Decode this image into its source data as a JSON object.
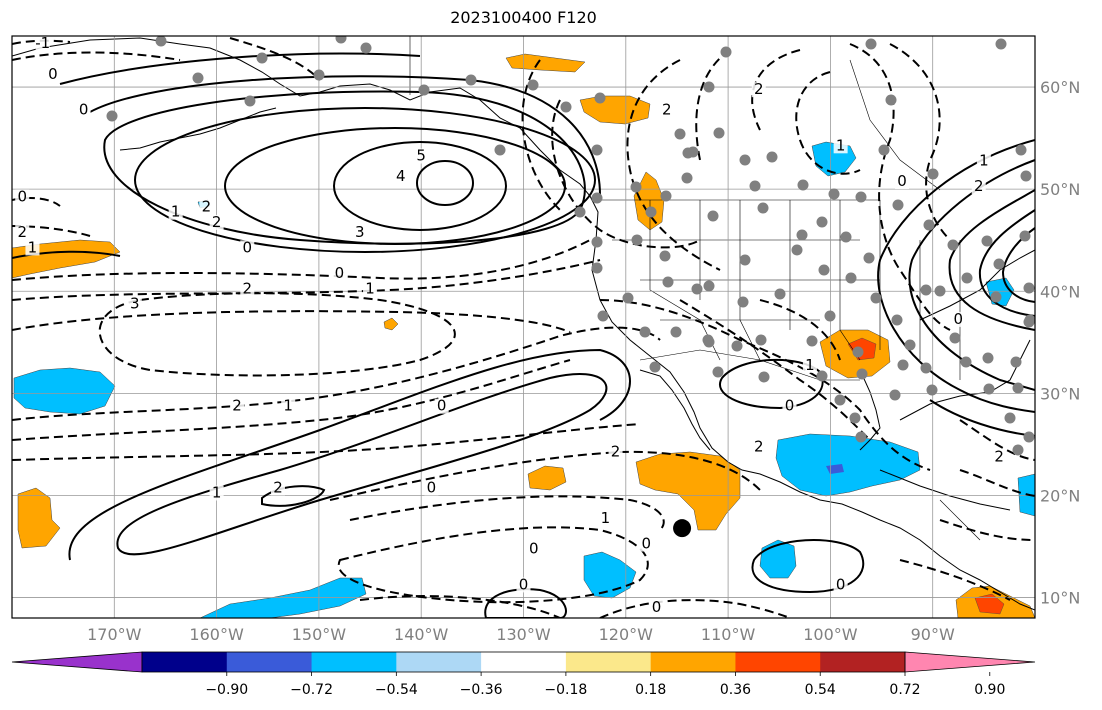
{
  "title": "2023100400 F120",
  "map": {
    "extent": {
      "lon_min": -180,
      "lon_max": -80,
      "lat_min": 8,
      "lat_max": 65
    },
    "lon_ticks": [
      {
        "lon": -170,
        "label": "170°W"
      },
      {
        "lon": -160,
        "label": "160°W"
      },
      {
        "lon": -150,
        "label": "150°W"
      },
      {
        "lon": -140,
        "label": "140°W"
      },
      {
        "lon": -130,
        "label": "130°W"
      },
      {
        "lon": -120,
        "label": "120°W"
      },
      {
        "lon": -110,
        "label": "110°W"
      },
      {
        "lon": -100,
        "label": "100°W"
      },
      {
        "lon": -90,
        "label": "90°W"
      }
    ],
    "lat_ticks": [
      {
        "lat": 60,
        "label": "60°N"
      },
      {
        "lat": 50,
        "label": "50°N"
      },
      {
        "lat": 40,
        "label": "40°N"
      },
      {
        "lat": 30,
        "label": "30°N"
      },
      {
        "lat": 20,
        "label": "20°N"
      },
      {
        "lat": 10,
        "label": "10°N"
      }
    ],
    "contour_labels": [
      {
        "lon": -177,
        "lat": 64,
        "text": "-1"
      },
      {
        "lon": -176,
        "lat": 61,
        "text": "0"
      },
      {
        "lon": -173,
        "lat": 57.5,
        "text": "0"
      },
      {
        "lon": -140,
        "lat": 53,
        "text": "5"
      },
      {
        "lon": -142,
        "lat": 51,
        "text": "4"
      },
      {
        "lon": -146,
        "lat": 45.5,
        "text": "3"
      },
      {
        "lon": -161,
        "lat": 48,
        "text": "2"
      },
      {
        "lon": -160,
        "lat": 46.5,
        "text": "2"
      },
      {
        "lon": -164,
        "lat": 47.5,
        "text": "1"
      },
      {
        "lon": -157,
        "lat": 44,
        "text": "0"
      },
      {
        "lon": -148,
        "lat": 41.5,
        "text": "0"
      },
      {
        "lon": -145,
        "lat": 40,
        "text": "1"
      },
      {
        "lon": -157,
        "lat": 40,
        "text": "2"
      },
      {
        "lon": -168,
        "lat": 38.5,
        "text": "3"
      },
      {
        "lon": -158,
        "lat": 28.5,
        "text": "2"
      },
      {
        "lon": -153,
        "lat": 28.5,
        "text": "1"
      },
      {
        "lon": -138,
        "lat": 28.5,
        "text": "0"
      },
      {
        "lon": -139,
        "lat": 20.5,
        "text": "0"
      },
      {
        "lon": -160,
        "lat": 20,
        "text": "1"
      },
      {
        "lon": -154,
        "lat": 20.5,
        "text": "2"
      },
      {
        "lon": -121,
        "lat": 24,
        "text": "2"
      },
      {
        "lon": -122,
        "lat": 17.5,
        "text": "1"
      },
      {
        "lon": -129,
        "lat": 14.5,
        "text": "0"
      },
      {
        "lon": -130,
        "lat": 11,
        "text": "0"
      },
      {
        "lon": -118,
        "lat": 15,
        "text": "0"
      },
      {
        "lon": -117,
        "lat": 8.8,
        "text": "0"
      },
      {
        "lon": -102,
        "lat": 32.5,
        "text": "1"
      },
      {
        "lon": -104,
        "lat": 28.5,
        "text": "0"
      },
      {
        "lon": -107,
        "lat": 24.5,
        "text": "2"
      },
      {
        "lon": -99,
        "lat": 11,
        "text": "0"
      },
      {
        "lon": -116,
        "lat": 57.5,
        "text": "2"
      },
      {
        "lon": -107,
        "lat": 59.5,
        "text": "2"
      },
      {
        "lon": -99,
        "lat": 54,
        "text": "1"
      },
      {
        "lon": -93,
        "lat": 50.5,
        "text": "0"
      },
      {
        "lon": -85,
        "lat": 52.5,
        "text": "1"
      },
      {
        "lon": -85.5,
        "lat": 50,
        "text": "2"
      },
      {
        "lon": -87.5,
        "lat": 37,
        "text": "0"
      },
      {
        "lon": -83.5,
        "lat": 23.5,
        "text": "2"
      },
      {
        "lon": -179,
        "lat": 49,
        "text": "0"
      },
      {
        "lon": -179,
        "lat": 45.5,
        "text": "2"
      },
      {
        "lon": -178,
        "lat": 44,
        "text": "1"
      }
    ],
    "marker": {
      "lon": -114.5,
      "lat": 16.8,
      "color": "#000000"
    },
    "station_color": "#808080"
  },
  "colorbar": {
    "colors": [
      "#9932cc",
      "#00008b",
      "#3a5bd9",
      "#00bfff",
      "#add8f5",
      "#ffffff",
      "#fbe88b",
      "#ffa500",
      "#ff4500",
      "#b22222",
      "#ff86b0"
    ],
    "tick_labels": [
      "−0.90",
      "−0.72",
      "−0.54",
      "−0.36",
      "−0.18",
      "0.18",
      "0.36",
      "0.54",
      "0.72",
      "0.90"
    ]
  }
}
